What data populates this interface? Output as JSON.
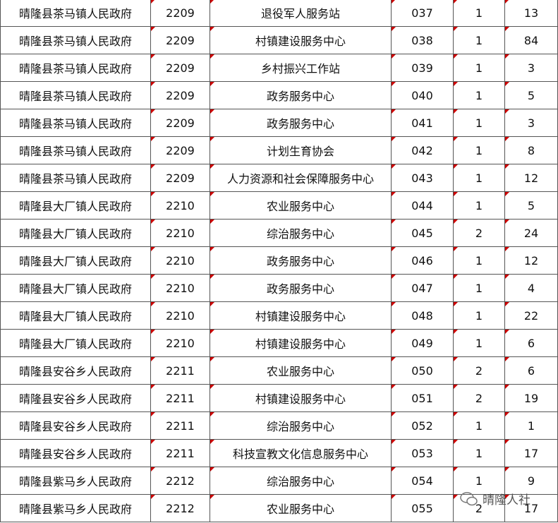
{
  "table": {
    "rows": [
      [
        "晴隆县茶马镇人民政府",
        "2209",
        "退役军人服务站",
        "037",
        "1",
        "13"
      ],
      [
        "晴隆县茶马镇人民政府",
        "2209",
        "村镇建设服务中心",
        "038",
        "1",
        "84"
      ],
      [
        "晴隆县茶马镇人民政府",
        "2209",
        "乡村振兴工作站",
        "039",
        "1",
        "3"
      ],
      [
        "晴隆县茶马镇人民政府",
        "2209",
        "政务服务中心",
        "040",
        "1",
        "5"
      ],
      [
        "晴隆县茶马镇人民政府",
        "2209",
        "政务服务中心",
        "041",
        "1",
        "3"
      ],
      [
        "晴隆县茶马镇人民政府",
        "2209",
        "计划生育协会",
        "042",
        "1",
        "8"
      ],
      [
        "晴隆县茶马镇人民政府",
        "2209",
        "人力资源和社会保障服务中心",
        "043",
        "1",
        "12"
      ],
      [
        "晴隆县大厂镇人民政府",
        "2210",
        "农业服务中心",
        "044",
        "1",
        "5"
      ],
      [
        "晴隆县大厂镇人民政府",
        "2210",
        "综治服务中心",
        "045",
        "2",
        "24"
      ],
      [
        "晴隆县大厂镇人民政府",
        "2210",
        "政务服务中心",
        "046",
        "1",
        "12"
      ],
      [
        "晴隆县大厂镇人民政府",
        "2210",
        "政务服务中心",
        "047",
        "1",
        "4"
      ],
      [
        "晴隆县大厂镇人民政府",
        "2210",
        "村镇建设服务中心",
        "048",
        "1",
        "22"
      ],
      [
        "晴隆县大厂镇人民政府",
        "2210",
        "村镇建设服务中心",
        "049",
        "1",
        "6"
      ],
      [
        "晴隆县安谷乡人民政府",
        "2211",
        "农业服务中心",
        "050",
        "2",
        "6"
      ],
      [
        "晴隆县安谷乡人民政府",
        "2211",
        "村镇建设服务中心",
        "051",
        "2",
        "19"
      ],
      [
        "晴隆县安谷乡人民政府",
        "2211",
        "综治服务中心",
        "052",
        "1",
        "1"
      ],
      [
        "晴隆县安谷乡人民政府",
        "2211",
        "科技宣教文化信息服务中心",
        "053",
        "1",
        "17"
      ],
      [
        "晴隆县紫马乡人民政府",
        "2212",
        "综治服务中心",
        "054",
        "1",
        "9"
      ],
      [
        "晴隆县紫马乡人民政府",
        "2212",
        "农业服务中心",
        "055",
        "2",
        "17"
      ]
    ]
  },
  "watermark": "晴隆人社"
}
